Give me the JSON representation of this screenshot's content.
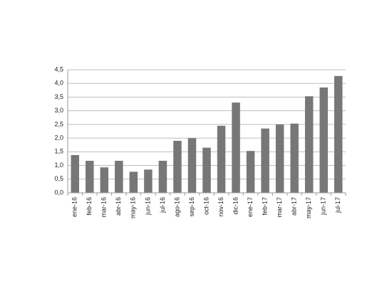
{
  "chart_data": {
    "type": "bar",
    "categories": [
      "ene-16",
      "feb-16",
      "mar-16",
      "abr-16",
      "may-16",
      "jun-16",
      "jul-16",
      "ago-16",
      "sep-16",
      "oct-16",
      "nov-16",
      "dic-16",
      "ene-17",
      "feb-17",
      "mar-17",
      "abr-17",
      "may-17",
      "jun-17",
      "jul-17"
    ],
    "values": [
      1.38,
      1.17,
      0.93,
      1.17,
      0.77,
      0.85,
      1.17,
      1.9,
      2.0,
      1.65,
      2.45,
      3.3,
      1.53,
      2.35,
      2.5,
      2.53,
      3.53,
      3.85,
      4.27
    ],
    "color": "#777777",
    "ylim": [
      0,
      4.5
    ],
    "yticks": [
      {
        "value": 0,
        "label": "0,0"
      },
      {
        "value": 0.5,
        "label": "0,5"
      },
      {
        "value": 1,
        "label": "1,0"
      },
      {
        "value": 1.5,
        "label": "1,5"
      },
      {
        "value": 2,
        "label": "2,0"
      },
      {
        "value": 2.5,
        "label": "2,5"
      },
      {
        "value": 3,
        "label": "3,0"
      },
      {
        "value": 3.5,
        "label": "3,5"
      },
      {
        "value": 4,
        "label": "4,0"
      },
      {
        "value": 4.5,
        "label": "4,5"
      }
    ],
    "grid": true
  }
}
